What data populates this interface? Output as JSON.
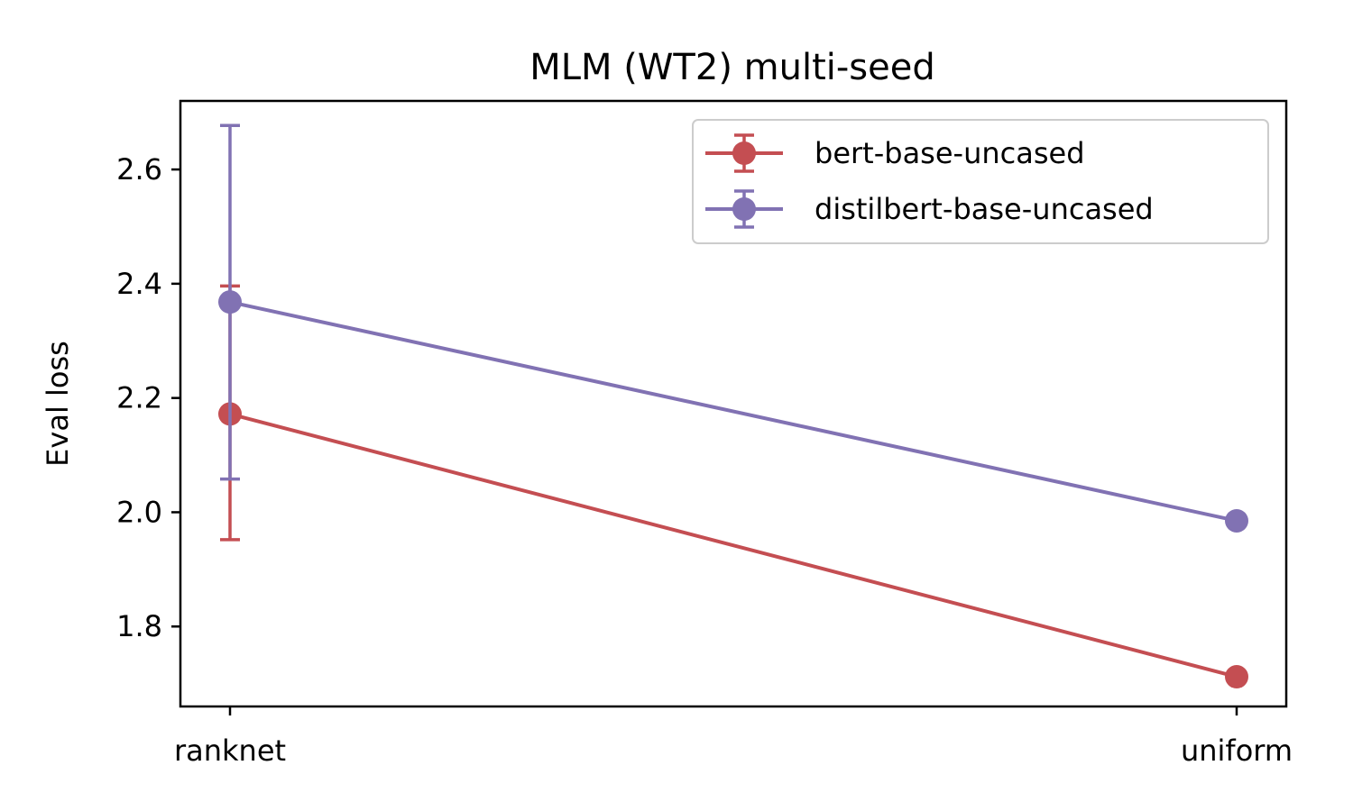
{
  "chart_data": {
    "type": "line",
    "title": "MLM (WT2) multi-seed",
    "xlabel": "",
    "ylabel": "Eval loss",
    "categories": [
      "ranknet",
      "uniform"
    ],
    "ylim": [
      1.66,
      2.72
    ],
    "yticks": [
      "1.8",
      "2.0",
      "2.2",
      "2.4",
      "2.6"
    ],
    "grid": false,
    "legend_position": "top-right",
    "series": [
      {
        "name": "bert-base-uncased",
        "color": "#c44e52",
        "values": [
          2.172,
          1.712
        ],
        "err_low": [
          1.952,
          null
        ],
        "err_high": [
          2.396,
          null
        ]
      },
      {
        "name": "distilbert-base-uncased",
        "color": "#8172b3",
        "values": [
          2.368,
          1.985
        ],
        "err_low": [
          2.058,
          null
        ],
        "err_high": [
          2.677,
          null
        ]
      }
    ]
  }
}
